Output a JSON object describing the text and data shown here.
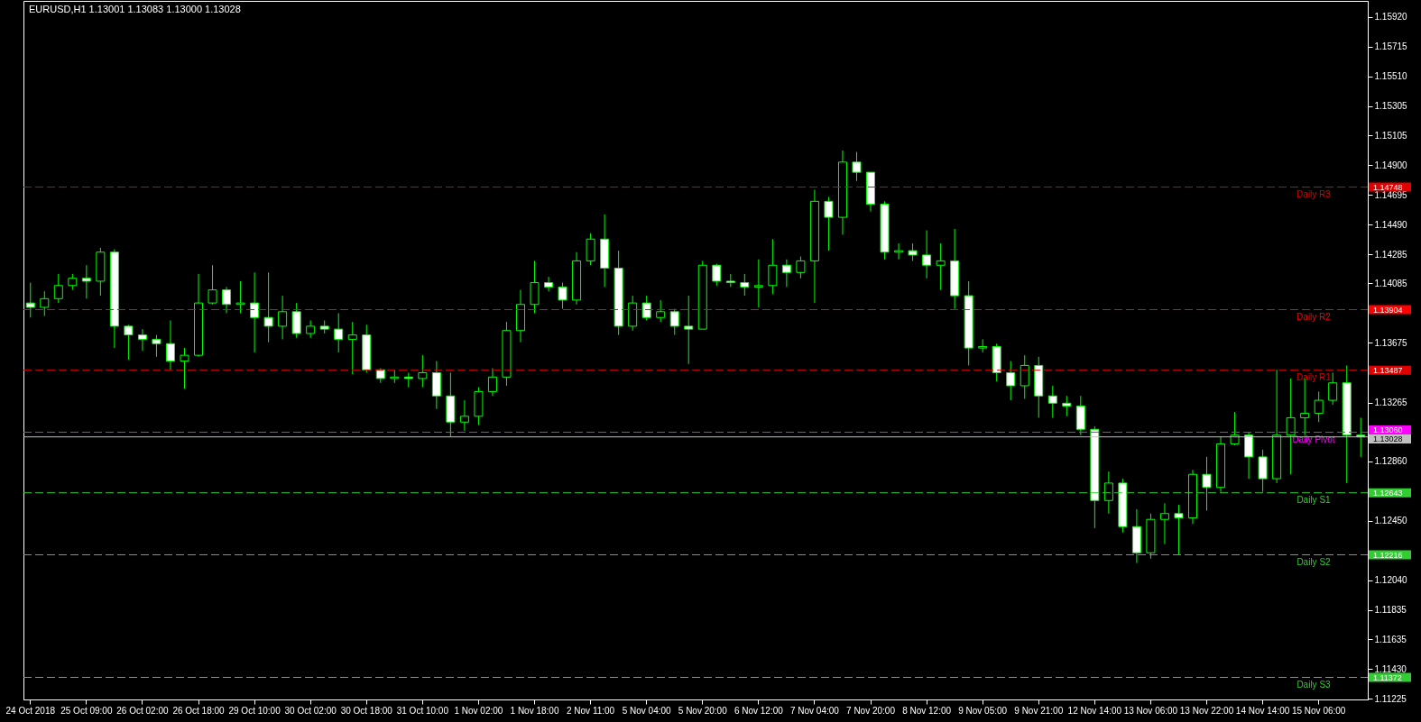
{
  "chart_data": {
    "type": "candlestick",
    "title": "EURUSD,H1  1.13001 1.13083 1.13000 1.13028",
    "color": "#00ff00",
    "categories": [
      "24 Oct 2018",
      null,
      null,
      null,
      "25 Oct 09:00",
      null,
      null,
      null,
      "26 Oct 02:00",
      null,
      null,
      null,
      "26 Oct 18:00",
      null,
      null,
      null,
      "29 Oct 10:00",
      null,
      null,
      null,
      "30 Oct 02:00",
      null,
      null,
      null,
      "30 Oct 18:00",
      null,
      null,
      null,
      "31 Oct 10:00",
      null,
      null,
      null,
      "1 Nov 02:00",
      null,
      null,
      null,
      "1 Nov 18:00",
      null,
      null,
      null,
      "2 Nov 11:00",
      null,
      null,
      null,
      "5 Nov 04:00",
      null,
      null,
      null,
      "5 Nov 20:00",
      null,
      null,
      null,
      "6 Nov 12:00",
      null,
      null,
      null,
      "7 Nov 04:00",
      null,
      null,
      null,
      "7 Nov 20:00",
      null,
      null,
      null,
      "8 Nov 12:00",
      null,
      null,
      null,
      "9 Nov 05:00",
      null,
      null,
      null,
      "9 Nov 21:00",
      null,
      null,
      null,
      "12 Nov 14:00",
      null,
      null,
      null,
      "13 Nov 06:00",
      null,
      null,
      null,
      "13 Nov 22:00",
      null,
      null,
      null,
      "14 Nov 14:00",
      null,
      null,
      null,
      "15 Nov 06:00",
      null,
      null,
      null
    ],
    "ohlc": [
      [
        1.1395,
        1.1409,
        1.1385,
        1.1392
      ],
      [
        1.1392,
        1.1403,
        1.1386,
        1.1398
      ],
      [
        1.1398,
        1.1415,
        1.1395,
        1.1407
      ],
      [
        1.1407,
        1.1415,
        1.1404,
        1.1412
      ],
      [
        1.1412,
        1.1421,
        1.1398,
        1.141
      ],
      [
        1.141,
        1.1433,
        1.14,
        1.143
      ],
      [
        1.143,
        1.1432,
        1.1364,
        1.1379
      ],
      [
        1.1379,
        1.138,
        1.1356,
        1.1373
      ],
      [
        1.1373,
        1.1377,
        1.1362,
        1.137
      ],
      [
        1.137,
        1.1373,
        1.1358,
        1.1367
      ],
      [
        1.1367,
        1.1383,
        1.1349,
        1.1355
      ],
      [
        1.1355,
        1.1364,
        1.1336,
        1.1359
      ],
      [
        1.1359,
        1.1415,
        1.1358,
        1.1395
      ],
      [
        1.1395,
        1.1421,
        1.1394,
        1.1404
      ],
      [
        1.1404,
        1.1406,
        1.1388,
        1.1394
      ],
      [
        1.1394,
        1.141,
        1.1388,
        1.1395
      ],
      [
        1.1395,
        1.1416,
        1.1361,
        1.1385
      ],
      [
        1.1385,
        1.1416,
        1.1368,
        1.1379
      ],
      [
        1.1379,
        1.14,
        1.137,
        1.1389
      ],
      [
        1.1389,
        1.1395,
        1.1371,
        1.1374
      ],
      [
        1.1374,
        1.1383,
        1.1371,
        1.1379
      ],
      [
        1.1379,
        1.1383,
        1.1374,
        1.1377
      ],
      [
        1.1377,
        1.1388,
        1.1361,
        1.137
      ],
      [
        1.137,
        1.1382,
        1.1346,
        1.1373
      ],
      [
        1.1373,
        1.138,
        1.1347,
        1.1349
      ],
      [
        1.1349,
        1.135,
        1.134,
        1.1343
      ],
      [
        1.1343,
        1.1349,
        1.134,
        1.1344
      ],
      [
        1.1344,
        1.1347,
        1.1337,
        1.1343
      ],
      [
        1.1343,
        1.1359,
        1.1337,
        1.1347
      ],
      [
        1.1347,
        1.1355,
        1.1322,
        1.1331
      ],
      [
        1.1331,
        1.1347,
        1.1303,
        1.1313
      ],
      [
        1.1313,
        1.1328,
        1.1307,
        1.1317
      ],
      [
        1.1317,
        1.1337,
        1.1311,
        1.1334
      ],
      [
        1.1334,
        1.135,
        1.1331,
        1.1344
      ],
      [
        1.1344,
        1.1382,
        1.1338,
        1.1376
      ],
      [
        1.1376,
        1.1404,
        1.1368,
        1.1394
      ],
      [
        1.1394,
        1.1424,
        1.1388,
        1.1409
      ],
      [
        1.1409,
        1.1413,
        1.1403,
        1.1406
      ],
      [
        1.1406,
        1.1409,
        1.1391,
        1.1397
      ],
      [
        1.1397,
        1.143,
        1.1394,
        1.1424
      ],
      [
        1.1424,
        1.1443,
        1.1421,
        1.1439
      ],
      [
        1.1439,
        1.1456,
        1.1406,
        1.1419
      ],
      [
        1.1419,
        1.1431,
        1.1373,
        1.1379
      ],
      [
        1.1379,
        1.14,
        1.1376,
        1.1395
      ],
      [
        1.1395,
        1.14,
        1.1383,
        1.1385
      ],
      [
        1.1385,
        1.1397,
        1.1382,
        1.1389
      ],
      [
        1.1389,
        1.1391,
        1.1373,
        1.1379
      ],
      [
        1.1379,
        1.14,
        1.1353,
        1.1377
      ],
      [
        1.1377,
        1.1424,
        1.1377,
        1.1421
      ],
      [
        1.1421,
        1.1422,
        1.1407,
        1.141
      ],
      [
        1.141,
        1.1415,
        1.1406,
        1.1409
      ],
      [
        1.1409,
        1.1415,
        1.14,
        1.1406
      ],
      [
        1.1406,
        1.1425,
        1.1392,
        1.1407
      ],
      [
        1.1407,
        1.1439,
        1.1401,
        1.1421
      ],
      [
        1.1421,
        1.1425,
        1.1406,
        1.1416
      ],
      [
        1.1416,
        1.1427,
        1.1412,
        1.1424
      ],
      [
        1.1424,
        1.1473,
        1.1395,
        1.1465
      ],
      [
        1.1465,
        1.1468,
        1.1431,
        1.1454
      ],
      [
        1.1454,
        1.15,
        1.1442,
        1.1492
      ],
      [
        1.1492,
        1.1499,
        1.1479,
        1.1485
      ],
      [
        1.1485,
        1.1485,
        1.1458,
        1.1463
      ],
      [
        1.1463,
        1.1465,
        1.1425,
        1.143
      ],
      [
        1.143,
        1.1436,
        1.1425,
        1.1431
      ],
      [
        1.1431,
        1.1436,
        1.1424,
        1.1428
      ],
      [
        1.1428,
        1.1445,
        1.1412,
        1.1421
      ],
      [
        1.1421,
        1.1436,
        1.1404,
        1.1424
      ],
      [
        1.1424,
        1.1446,
        1.1391,
        1.14
      ],
      [
        1.14,
        1.141,
        1.1352,
        1.1364
      ],
      [
        1.1364,
        1.137,
        1.1361,
        1.1365
      ],
      [
        1.1365,
        1.1367,
        1.1341,
        1.1347
      ],
      [
        1.1347,
        1.1355,
        1.1328,
        1.1338
      ],
      [
        1.1338,
        1.1359,
        1.1329,
        1.1352
      ],
      [
        1.1352,
        1.1358,
        1.1316,
        1.1331
      ],
      [
        1.1331,
        1.1338,
        1.1316,
        1.1326
      ],
      [
        1.1326,
        1.1331,
        1.1317,
        1.1324
      ],
      [
        1.1324,
        1.1331,
        1.1304,
        1.1308
      ],
      [
        1.1308,
        1.131,
        1.124,
        1.1259
      ],
      [
        1.1259,
        1.1279,
        1.125,
        1.1271
      ],
      [
        1.1271,
        1.1274,
        1.1237,
        1.1241
      ],
      [
        1.1241,
        1.1253,
        1.1216,
        1.1223
      ],
      [
        1.1223,
        1.125,
        1.1219,
        1.1246
      ],
      [
        1.1246,
        1.1257,
        1.1229,
        1.125
      ],
      [
        1.125,
        1.1256,
        1.1222,
        1.1247
      ],
      [
        1.1247,
        1.128,
        1.1243,
        1.1277
      ],
      [
        1.1277,
        1.1289,
        1.1252,
        1.1268
      ],
      [
        1.1268,
        1.1303,
        1.1265,
        1.1298
      ],
      [
        1.1298,
        1.132,
        1.1297,
        1.1304
      ],
      [
        1.1304,
        1.1306,
        1.1274,
        1.1289
      ],
      [
        1.1289,
        1.1294,
        1.1265,
        1.1274
      ],
      [
        1.1274,
        1.1349,
        1.1271,
        1.1304
      ],
      [
        1.1304,
        1.1343,
        1.1277,
        1.1316
      ],
      [
        1.1316,
        1.1343,
        1.1304,
        1.1319
      ],
      [
        1.1319,
        1.1334,
        1.1313,
        1.1328
      ],
      [
        1.1328,
        1.1347,
        1.1325,
        1.134
      ],
      [
        1.134,
        1.1352,
        1.1271,
        1.1304
      ],
      [
        1.1304,
        1.1316,
        1.1289,
        1.13028
      ]
    ],
    "ylim": [
      1.1122,
      1.1603
    ],
    "yticks": [
      {
        "value": 1.11225,
        "label": "1.11225"
      },
      {
        "value": 1.1143,
        "label": "1.11430"
      },
      {
        "value": 1.11635,
        "label": "1.11635"
      },
      {
        "value": 1.11835,
        "label": "1.11835"
      },
      {
        "value": 1.1204,
        "label": "1.12040"
      },
      {
        "value": 1.1245,
        "label": "1.12450"
      },
      {
        "value": 1.1286,
        "label": "1.12860"
      },
      {
        "value": 1.13265,
        "label": "1.13265"
      },
      {
        "value": 1.13675,
        "label": "1.13675"
      },
      {
        "value": 1.14085,
        "label": "1.14085"
      },
      {
        "value": 1.14285,
        "label": "1.14285"
      },
      {
        "value": 1.1449,
        "label": "1.14490"
      },
      {
        "value": 1.14695,
        "label": "1.14695"
      },
      {
        "value": 1.149,
        "label": "1.14900"
      },
      {
        "value": 1.15105,
        "label": "1.15105"
      },
      {
        "value": 1.15305,
        "label": "1.15305"
      },
      {
        "value": 1.1551,
        "label": "1.15510"
      },
      {
        "value": 1.15715,
        "label": "1.15715"
      },
      {
        "value": 1.1592,
        "label": "1.15920"
      }
    ],
    "ref_lines": [
      {
        "axis": "y",
        "value": 1.14748,
        "label": "Daily R3",
        "color": "#e00000",
        "line_style": "dashed"
      },
      {
        "axis": "y",
        "value": 1.13904,
        "label": "Daily R2",
        "color": "#ff0000",
        "line_style": "dashed"
      },
      {
        "axis": "y",
        "value": 1.13487,
        "label": "Daily R1",
        "color": "#e00000",
        "line_style": "dashed"
      },
      {
        "axis": "y",
        "value": 1.1306,
        "label": "Daily Pivot",
        "color": "#ff00ff",
        "line_style": "dashed"
      },
      {
        "axis": "y",
        "value": 1.13028,
        "color": "#c0c0c0",
        "line_style": "solid"
      },
      {
        "axis": "y",
        "value": 1.12643,
        "label": "Daily S1",
        "color": "#32cd32",
        "line_style": "dashed"
      },
      {
        "axis": "y",
        "value": 1.12216,
        "label": "Daily S2",
        "color": "#32cd32",
        "line_style": "dashed"
      },
      {
        "axis": "y",
        "value": 1.11372,
        "label": "Daily S3",
        "color": "#32cd32",
        "line_style": "dashed"
      }
    ],
    "annotations": [
      "1.14748",
      "1.13904",
      "1.13487",
      "1.13060",
      "1.13028",
      "1.12643",
      "1.12216",
      "1.11372"
    ],
    "grid": false
  }
}
